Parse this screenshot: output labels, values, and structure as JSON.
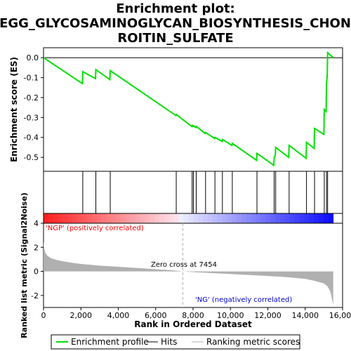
{
  "title_lines": [
    "Enrichment plot:",
    "KEGG_GLYCOSAMINOGLYCAN_BIOSYNTHESIS_CHOND",
    "ROITIN_SULFATE"
  ],
  "colors": {
    "es_line": "#00e000",
    "hits": "#000000",
    "metric_fill": "#b0b0b0",
    "pos_label": "#ff0000",
    "neg_label": "#0000cc",
    "zero_line": "#b0b0b0"
  },
  "chart_data": [
    {
      "type": "line",
      "panel": "enrichment-score",
      "ylabel": "Enrichment score (ES)",
      "xlim": [
        0,
        16000
      ],
      "ylim": [
        -0.57,
        0.05
      ],
      "yticks": [
        "0.0",
        "-0.1",
        "-0.2",
        "-0.3",
        "-0.4",
        "-0.5"
      ],
      "ytick_values": [
        0.0,
        -0.1,
        -0.2,
        -0.3,
        -0.4,
        -0.5
      ],
      "series": [
        {
          "x": [
            0,
            2080,
            2100,
            2780,
            2800,
            3550,
            3570,
            7080,
            7100,
            7930,
            7950,
            8000,
            8020,
            8150,
            8170,
            8650,
            8670,
            9150,
            9170,
            9550,
            9570,
            10080,
            10100,
            11400,
            11420,
            12320,
            12340,
            12400,
            12420,
            13120,
            13140,
            14050,
            14070,
            14480,
            14500,
            15000,
            15020,
            15120,
            15140,
            15180,
            15200,
            15500
          ],
          "y": [
            0.0,
            -0.13,
            -0.07,
            -0.105,
            -0.06,
            -0.11,
            -0.065,
            -0.29,
            -0.285,
            -0.345,
            -0.34,
            -0.345,
            -0.342,
            -0.35,
            -0.345,
            -0.38,
            -0.375,
            -0.405,
            -0.4,
            -0.42,
            -0.41,
            -0.44,
            -0.43,
            -0.515,
            -0.48,
            -0.54,
            -0.5,
            -0.49,
            -0.45,
            -0.5,
            -0.44,
            -0.505,
            -0.425,
            -0.455,
            -0.355,
            -0.385,
            -0.26,
            -0.27,
            -0.13,
            -0.09,
            0.025,
            0.0
          ]
        }
      ]
    },
    {
      "type": "hits",
      "panel": "hit-barcode",
      "x": [
        2100,
        2800,
        3570,
        7100,
        7950,
        8020,
        8170,
        8670,
        9170,
        9570,
        10100,
        11420,
        12340,
        12420,
        13140,
        14070,
        14500,
        15020,
        15140,
        15200
      ]
    },
    {
      "type": "heatmap",
      "panel": "rank-color-bar",
      "labels": [
        "'NGP' (positively correlated)"
      ]
    },
    {
      "type": "area",
      "panel": "ranked-metric",
      "xlabel": "Rank in Ordered Dataset",
      "ylabel": "Ranked list metric (Signal2Noise)",
      "xlim": [
        0,
        16000
      ],
      "ylim": [
        -3,
        4
      ],
      "yticks": [
        "4",
        "2",
        "0",
        "-2"
      ],
      "ytick_values": [
        4,
        2,
        0,
        -2
      ],
      "xticks": [
        "0",
        "2,000",
        "4,000",
        "6,000",
        "8,000",
        "10,000",
        "12,000",
        "14,000",
        "16,000"
      ],
      "xtick_values": [
        0,
        2000,
        4000,
        6000,
        8000,
        10000,
        12000,
        14000,
        16000
      ],
      "x": [
        0,
        40,
        100,
        200,
        400,
        700,
        1000,
        1500,
        2000,
        3000,
        4000,
        5000,
        6000,
        7000,
        7454,
        8000,
        9000,
        10000,
        11000,
        12000,
        13000,
        14000,
        14500,
        15000,
        15200,
        15350,
        15450,
        15500
      ],
      "values": [
        2.5,
        1.9,
        1.55,
        1.3,
        1.1,
        0.95,
        0.85,
        0.72,
        0.62,
        0.48,
        0.38,
        0.28,
        0.18,
        0.08,
        0.0,
        -0.06,
        -0.14,
        -0.22,
        -0.3,
        -0.38,
        -0.48,
        -0.62,
        -0.78,
        -1.0,
        -1.25,
        -1.7,
        -2.4,
        -2.8
      ],
      "zero_cross_label": "Zero cross at 7454",
      "zero_cross": 7454,
      "neg_label": "'NG' (negatively correlated)"
    }
  ],
  "legend": {
    "items": [
      {
        "label": "Enrichment profile",
        "color": "#00e000"
      },
      {
        "label": "Hits",
        "color": "#000000"
      },
      {
        "label": "Ranking metric scores",
        "color": "#b0b0b0"
      }
    ]
  }
}
